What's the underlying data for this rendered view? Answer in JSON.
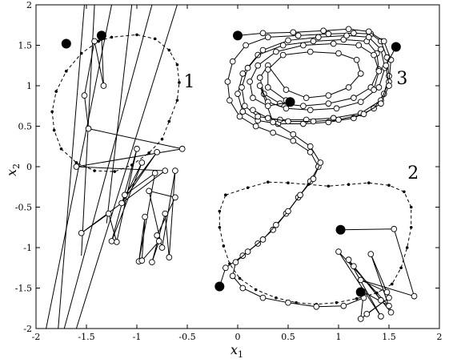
{
  "chart_data": {
    "type": "scatter",
    "xlim": [
      -2,
      2
    ],
    "ylim": [
      -2,
      2
    ],
    "x_ticks": [
      "-2",
      "-1.5",
      "-1",
      "-0.5",
      "0",
      "0.5",
      "1",
      "1.5",
      "2"
    ],
    "y_ticks": [
      "-2",
      "-1.5",
      "-1",
      "-0.5",
      "0",
      "0.5",
      "1",
      "1.5",
      "2"
    ],
    "xlabel": "x",
    "xlabel_sub": "1",
    "ylabel": "x",
    "ylabel_sub": "2",
    "grid": false,
    "region_labels": [
      {
        "text": "1",
        "x": -0.48,
        "y": 0.98
      },
      {
        "text": "2",
        "x": 1.74,
        "y": -0.15
      },
      {
        "text": "3",
        "x": 1.63,
        "y": 1.02
      }
    ],
    "boundaries": [
      {
        "name": "1",
        "style": "dashed",
        "points": [
          [
            -1.38,
            1.55
          ],
          [
            -1.25,
            1.6
          ],
          [
            -1.0,
            1.63
          ],
          [
            -0.82,
            1.58
          ],
          [
            -0.68,
            1.44
          ],
          [
            -0.6,
            1.26
          ],
          [
            -0.58,
            1.04
          ],
          [
            -0.6,
            0.82
          ],
          [
            -0.68,
            0.56
          ],
          [
            -0.75,
            0.34
          ],
          [
            -0.88,
            0.17
          ],
          [
            -1.05,
            0.02
          ],
          [
            -1.22,
            -0.06
          ],
          [
            -1.42,
            -0.05
          ],
          [
            -1.6,
            0.05
          ],
          [
            -1.75,
            0.22
          ],
          [
            -1.82,
            0.45
          ],
          [
            -1.84,
            0.68
          ],
          [
            -1.8,
            0.93
          ],
          [
            -1.7,
            1.18
          ],
          [
            -1.55,
            1.4
          ],
          [
            -1.38,
            1.55
          ]
        ]
      },
      {
        "name": "2",
        "style": "dashed",
        "points": [
          [
            -0.12,
            -0.35
          ],
          [
            0.1,
            -0.26
          ],
          [
            0.3,
            -0.19
          ],
          [
            0.5,
            -0.2
          ],
          [
            0.7,
            -0.22
          ],
          [
            0.9,
            -0.24
          ],
          [
            1.1,
            -0.22
          ],
          [
            1.3,
            -0.2
          ],
          [
            1.5,
            -0.23
          ],
          [
            1.65,
            -0.31
          ],
          [
            1.72,
            -0.5
          ],
          [
            1.72,
            -0.75
          ],
          [
            1.68,
            -1.0
          ],
          [
            1.62,
            -1.25
          ],
          [
            1.53,
            -1.45
          ],
          [
            1.38,
            -1.56
          ],
          [
            1.18,
            -1.63
          ],
          [
            0.98,
            -1.68
          ],
          [
            0.78,
            -1.7
          ],
          [
            0.58,
            -1.68
          ],
          [
            0.38,
            -1.62
          ],
          [
            0.18,
            -1.52
          ],
          [
            0.02,
            -1.38
          ],
          [
            -0.08,
            -1.2
          ],
          [
            -0.14,
            -0.98
          ],
          [
            -0.18,
            -0.75
          ],
          [
            -0.18,
            -0.55
          ],
          [
            -0.12,
            -0.35
          ]
        ]
      }
    ],
    "trajectories": [
      {
        "name": "1",
        "start": [
          -1.35,
          1.62
        ],
        "points": [
          [
            -1.35,
            1.62
          ],
          [
            -1.33,
            1.0
          ],
          [
            -1.42,
            1.55
          ],
          [
            -1.52,
            0.88
          ],
          [
            -1.48,
            0.47
          ],
          [
            -0.55,
            0.22
          ],
          [
            -1.6,
            0.0
          ],
          [
            -0.72,
            -0.05
          ],
          [
            -1.55,
            -0.82
          ],
          [
            -1.28,
            -0.58
          ],
          [
            -1.2,
            -0.93
          ],
          [
            -1.0,
            0.22
          ],
          [
            -1.25,
            -0.92
          ],
          [
            -0.95,
            0.05
          ],
          [
            -1.15,
            -0.45
          ],
          [
            -0.8,
            0.18
          ],
          [
            -1.12,
            -0.35
          ],
          [
            -0.82,
            -0.08
          ],
          [
            -0.98,
            -1.17
          ],
          [
            -0.92,
            -0.62
          ],
          [
            -0.95,
            -1.16
          ],
          [
            -0.78,
            -0.92
          ],
          [
            -0.85,
            -1.18
          ],
          [
            -0.72,
            -0.58
          ],
          [
            -0.68,
            -1.12
          ],
          [
            -0.62,
            -0.05
          ],
          [
            -0.75,
            -1.0
          ],
          [
            -0.88,
            -0.3
          ],
          [
            -0.62,
            -0.38
          ],
          [
            -0.8,
            -0.85
          ]
        ]
      },
      {
        "name": "2",
        "start": [
          1.02,
          -0.78
        ],
        "points": [
          [
            1.02,
            -0.78
          ],
          [
            1.55,
            -0.77
          ],
          [
            1.75,
            -1.6
          ],
          [
            1.22,
            -1.4
          ],
          [
            1.48,
            -1.55
          ],
          [
            1.32,
            -1.08
          ],
          [
            1.52,
            -1.8
          ],
          [
            1.15,
            -1.23
          ],
          [
            1.42,
            -1.65
          ],
          [
            1.1,
            -1.15
          ],
          [
            1.42,
            -1.85
          ],
          [
            1.0,
            -1.05
          ],
          [
            1.5,
            -1.72
          ],
          [
            1.25,
            -1.55
          ],
          [
            1.22,
            -1.88
          ],
          [
            1.5,
            -1.62
          ],
          [
            1.28,
            -1.82
          ]
        ]
      },
      {
        "name": "3",
        "start": [
          -0.18,
          -1.48
        ],
        "points": [
          [
            -0.18,
            -1.48
          ],
          [
            -0.12,
            -1.25
          ],
          [
            0.05,
            -1.1
          ],
          [
            0.2,
            -0.95
          ],
          [
            0.35,
            -0.78
          ],
          [
            0.48,
            -0.58
          ],
          [
            0.6,
            -0.38
          ],
          [
            0.72,
            -0.18
          ],
          [
            0.8,
            0.0
          ],
          [
            0.72,
            0.18
          ],
          [
            0.55,
            0.32
          ],
          [
            0.35,
            0.42
          ],
          [
            0.18,
            0.5
          ],
          [
            0.02,
            0.62
          ],
          [
            -0.08,
            0.82
          ],
          [
            -0.1,
            1.05
          ],
          [
            -0.05,
            1.3
          ],
          [
            0.08,
            1.5
          ],
          [
            0.3,
            1.6
          ],
          [
            0.6,
            1.62
          ],
          [
            0.9,
            1.64
          ],
          [
            1.15,
            1.65
          ],
          [
            1.32,
            1.64
          ],
          [
            1.42,
            1.55
          ],
          [
            1.48,
            1.35
          ],
          [
            1.5,
            1.12
          ],
          [
            1.45,
            0.9
          ],
          [
            1.35,
            0.72
          ],
          [
            1.15,
            0.6
          ],
          [
            0.9,
            0.55
          ],
          [
            0.65,
            0.53
          ],
          [
            0.4,
            0.53
          ],
          [
            0.2,
            0.57
          ],
          [
            0.05,
            0.68
          ],
          [
            0.0,
            0.9
          ],
          [
            0.05,
            1.15
          ],
          [
            0.2,
            1.38
          ],
          [
            0.45,
            1.5
          ],
          [
            0.75,
            1.55
          ],
          [
            1.05,
            1.57
          ],
          [
            1.28,
            1.55
          ],
          [
            1.38,
            1.4
          ],
          [
            1.4,
            1.2
          ],
          [
            1.32,
            0.98
          ],
          [
            1.15,
            0.85
          ],
          [
            0.9,
            0.78
          ],
          [
            0.65,
            0.75
          ],
          [
            0.42,
            0.78
          ],
          [
            0.26,
            0.9
          ],
          [
            0.22,
            1.1
          ],
          [
            0.3,
            1.25
          ],
          [
            0.48,
            0.95
          ],
          [
            0.68,
            0.85
          ],
          [
            0.9,
            0.88
          ],
          [
            1.1,
            0.98
          ],
          [
            1.22,
            1.15
          ],
          [
            1.18,
            1.32
          ],
          [
            1.0,
            1.4
          ],
          [
            0.72,
            1.42
          ],
          [
            0.45,
            1.38
          ],
          [
            0.3,
            1.2
          ],
          [
            0.3,
            0.98
          ],
          [
            0.48,
            0.82
          ]
        ]
      },
      {
        "name": "3",
        "start": [
          0.0,
          1.62
        ],
        "points": [
          [
            0.0,
            1.62
          ],
          [
            0.25,
            1.65
          ],
          [
            0.55,
            1.66
          ],
          [
            0.85,
            1.68
          ],
          [
            1.1,
            1.7
          ],
          [
            1.3,
            1.67
          ],
          [
            1.45,
            1.55
          ],
          [
            1.52,
            1.32
          ],
          [
            1.5,
            1.05
          ],
          [
            1.42,
            0.82
          ],
          [
            1.22,
            0.66
          ],
          [
            0.95,
            0.6
          ],
          [
            0.68,
            0.58
          ],
          [
            0.42,
            0.58
          ],
          [
            0.2,
            0.62
          ],
          [
            0.07,
            0.75
          ],
          [
            0.04,
            0.98
          ],
          [
            0.1,
            1.22
          ],
          [
            0.25,
            1.44
          ],
          [
            0.5,
            1.56
          ],
          [
            0.8,
            1.6
          ],
          [
            1.08,
            1.62
          ],
          [
            1.3,
            1.6
          ],
          [
            1.42,
            1.45
          ],
          [
            1.46,
            1.22
          ],
          [
            1.4,
            0.98
          ],
          [
            1.22,
            0.8
          ],
          [
            0.98,
            0.72
          ],
          [
            0.72,
            0.7
          ],
          [
            0.48,
            0.72
          ],
          [
            0.3,
            0.8
          ],
          [
            0.22,
            1.0
          ],
          [
            0.35,
            0.55
          ],
          [
            0.55,
            0.4
          ],
          [
            0.72,
            0.25
          ],
          [
            0.82,
            0.05
          ],
          [
            0.75,
            -0.15
          ],
          [
            0.62,
            -0.35
          ],
          [
            0.5,
            -0.55
          ],
          [
            0.38,
            -0.72
          ],
          [
            0.25,
            -0.9
          ],
          [
            0.1,
            -1.05
          ],
          [
            -0.02,
            -1.18
          ],
          [
            -0.05,
            -1.35
          ],
          [
            0.05,
            -1.5
          ],
          [
            0.25,
            -1.62
          ],
          [
            0.5,
            -1.68
          ],
          [
            0.78,
            -1.73
          ],
          [
            1.05,
            -1.72
          ],
          [
            1.25,
            -1.62
          ]
        ]
      },
      {
        "name": "3",
        "start": [
          0.52,
          0.8
        ],
        "points": [
          [
            0.52,
            0.8
          ],
          [
            0.3,
            0.75
          ],
          [
            0.15,
            0.85
          ],
          [
            0.12,
            1.05
          ],
          [
            0.2,
            1.25
          ],
          [
            0.38,
            1.42
          ],
          [
            0.65,
            1.5
          ],
          [
            0.95,
            1.52
          ],
          [
            1.2,
            1.5
          ],
          [
            1.35,
            1.38
          ],
          [
            1.4,
            1.18
          ],
          [
            1.35,
            0.95
          ]
        ]
      },
      {
        "name": "3",
        "start": [
          1.57,
          1.48
        ],
        "points": [
          [
            1.57,
            1.48
          ],
          [
            1.47,
            1.25
          ],
          [
            1.5,
            1.0
          ],
          [
            1.42,
            0.78
          ],
          [
            1.25,
            0.65
          ],
          [
            1.0,
            0.58
          ],
          [
            0.75,
            0.56
          ],
          [
            0.5,
            0.56
          ],
          [
            0.3,
            0.6
          ],
          [
            0.15,
            0.7
          ]
        ]
      }
    ],
    "spikes": [
      [
        [
          -1.78,
          -2.0
        ],
        [
          -1.52,
          2.0
        ]
      ],
      [
        [
          -1.72,
          -2.0
        ],
        [
          -0.85,
          2.0
        ]
      ],
      [
        [
          -1.9,
          -2.0
        ],
        [
          -1.25,
          2.0
        ]
      ],
      [
        [
          -1.6,
          -2.0
        ],
        [
          -0.6,
          2.0
        ]
      ],
      [
        [
          -1.55,
          -1.1
        ],
        [
          -1.42,
          2.0
        ]
      ],
      [
        [
          -1.3,
          -0.7
        ],
        [
          -1.05,
          2.0
        ]
      ]
    ],
    "start_points": [
      [
        -1.7,
        1.52
      ],
      [
        -1.35,
        1.62
      ],
      [
        0.0,
        1.62
      ],
      [
        1.57,
        1.48
      ],
      [
        0.52,
        0.8
      ],
      [
        1.02,
        -0.78
      ],
      [
        -0.18,
        -1.48
      ],
      [
        1.22,
        -1.55
      ]
    ]
  }
}
